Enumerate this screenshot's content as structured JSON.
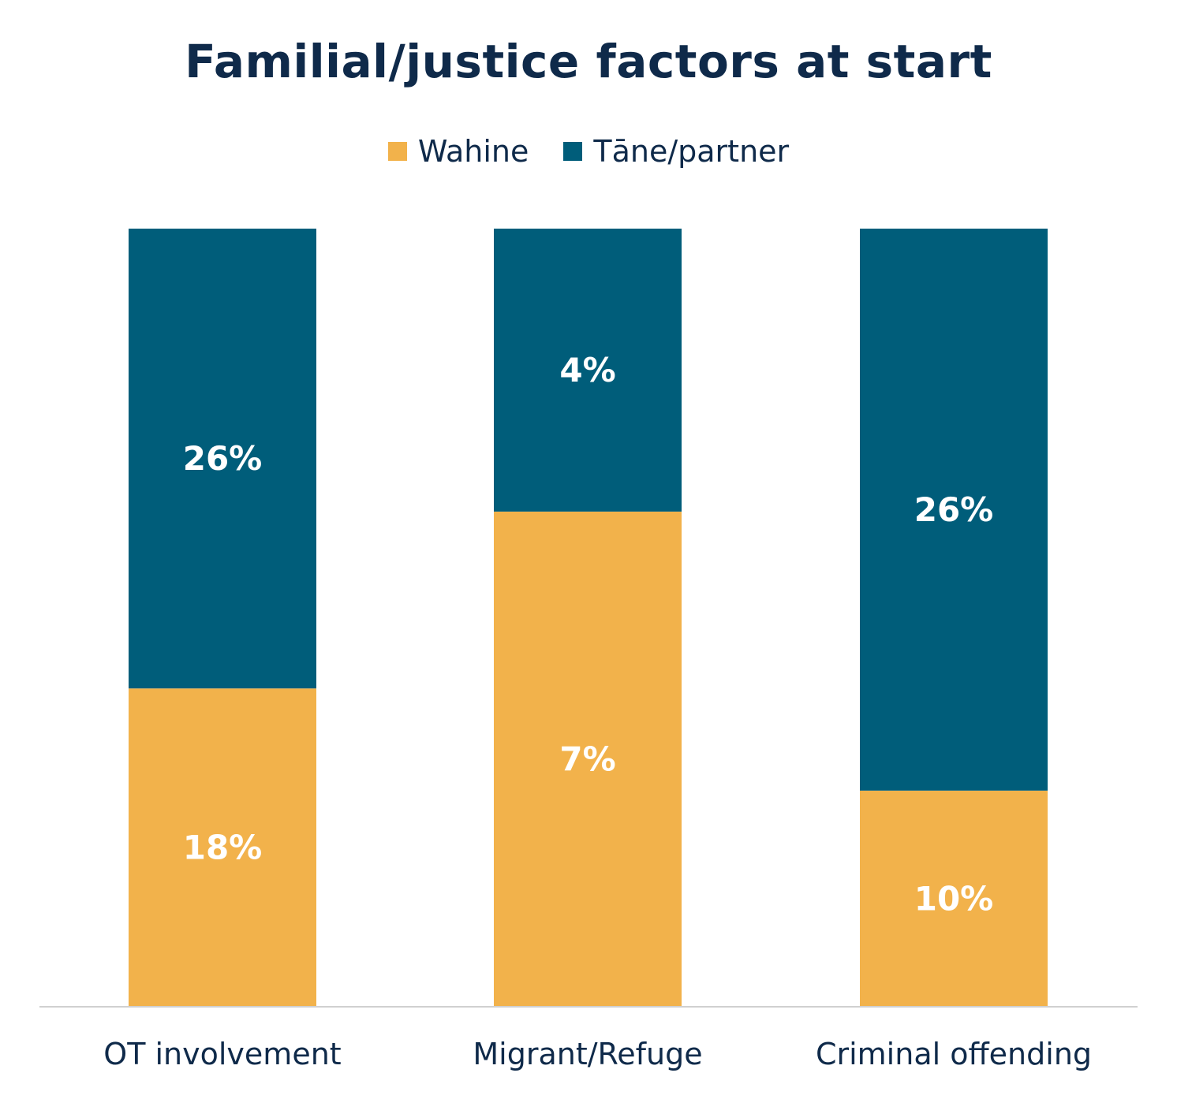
{
  "chart_data": {
    "type": "bar",
    "stacked": true,
    "normalized": true,
    "title": "Familial/justice factors at start",
    "categories": [
      "OT involvement",
      "Migrant/Refuge",
      "Criminal offending"
    ],
    "series": [
      {
        "name": "Wahine",
        "color": "#f2b24b",
        "values": [
          18,
          7,
          10
        ],
        "labels": [
          "18%",
          "7%",
          "10%"
        ]
      },
      {
        "name": "Tāne/partner",
        "color": "#005d7a",
        "values": [
          26,
          4,
          26
        ],
        "labels": [
          "26%",
          "4%",
          "26%"
        ]
      }
    ],
    "legend_position": "top-center",
    "grid": false,
    "axis_color": "#d0d0d0"
  }
}
